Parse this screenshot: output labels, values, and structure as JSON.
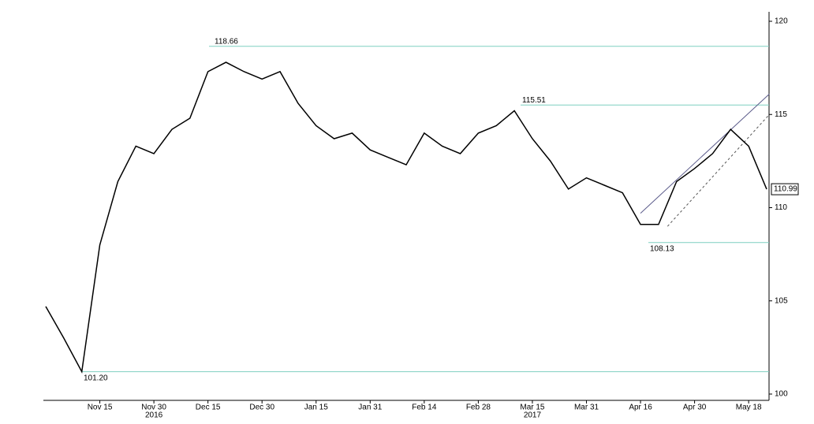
{
  "chart_data": {
    "type": "line",
    "categories": [
      null,
      null,
      null,
      "Nov 15",
      null,
      null,
      "Nov 30",
      null,
      null,
      "Dec 15",
      null,
      null,
      "Dec 30",
      null,
      null,
      "Jan 15",
      null,
      null,
      "Jan 31",
      null,
      null,
      "Feb 14",
      null,
      null,
      "Feb 28",
      null,
      null,
      "Mar 15",
      null,
      null,
      "Mar 31",
      null,
      null,
      "Apr 16",
      null,
      null,
      "Apr 30",
      null,
      null,
      "May 18",
      null
    ],
    "x_secondary_labels": [
      null,
      null,
      null,
      null,
      null,
      null,
      "2016",
      null,
      null,
      null,
      null,
      null,
      null,
      null,
      null,
      null,
      null,
      null,
      null,
      null,
      null,
      null,
      null,
      null,
      null,
      null,
      null,
      "2017",
      null,
      null,
      null,
      null,
      null,
      null,
      null,
      null,
      null,
      null,
      null,
      null,
      null
    ],
    "series": [
      {
        "color": "#000000",
        "values": [
          104.7,
          103.0,
          101.2,
          108.0,
          111.4,
          113.3,
          112.9,
          114.2,
          114.8,
          117.3,
          117.8,
          117.3,
          116.9,
          117.3,
          115.6,
          114.4,
          113.7,
          114.0,
          113.1,
          112.7,
          112.3,
          114.0,
          113.3,
          112.9,
          114.0,
          114.4,
          115.2,
          113.7,
          112.5,
          111.0,
          111.6,
          111.2,
          110.8,
          109.1,
          109.1,
          111.4,
          112.1,
          112.9,
          114.2,
          113.3,
          110.99
        ]
      }
    ],
    "ylim": [
      100,
      120
    ],
    "yticks": [
      100,
      105,
      110,
      115,
      120
    ],
    "levels": [
      118.66,
      {
        "value": 101.2,
        "label": "101.20"
      },
      115.51,
      108.13
    ],
    "level_color": "#7fcfc0",
    "trendlines": [
      {
        "style": "solid",
        "color": "#5a5a8a",
        "values": [
          109.7,
          116.1
        ]
      },
      {
        "style": "dashed",
        "color": "#555555",
        "values": [
          109.0,
          115.0
        ]
      }
    ],
    "last_value": 110.99
  }
}
